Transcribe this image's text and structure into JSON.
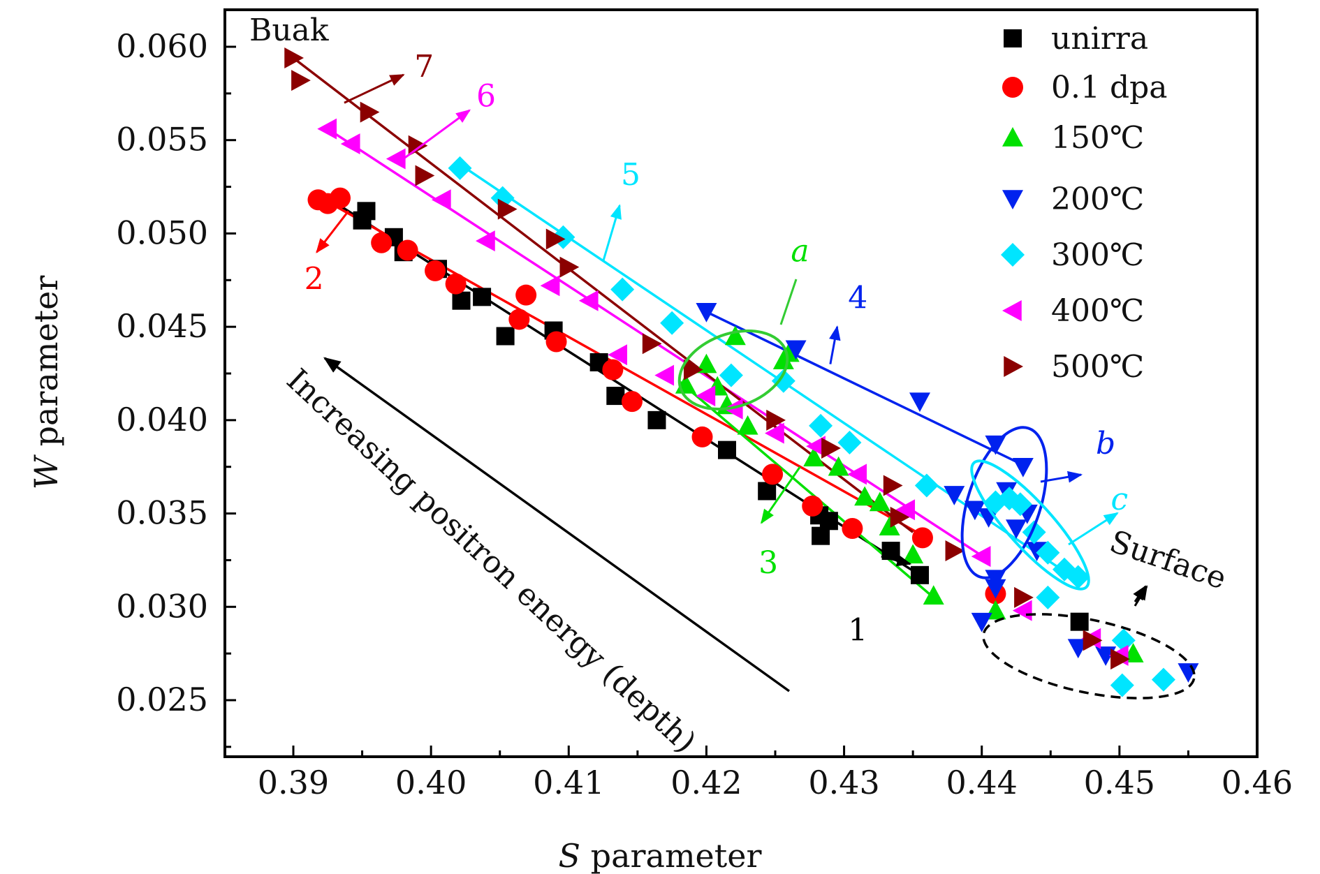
{
  "chart_data": {
    "type": "scatter",
    "title": "",
    "xlabel": {
      "symbol": "S",
      "text": " parameter"
    },
    "ylabel": {
      "symbol": "W",
      "text": " parameter"
    },
    "xlim": [
      0.385,
      0.46
    ],
    "ylim": [
      0.022,
      0.062
    ],
    "xticks": [
      0.39,
      0.4,
      0.41,
      0.42,
      0.43,
      0.44,
      0.45,
      0.46
    ],
    "xtick_labels": [
      "0.39",
      "0.40",
      "0.41",
      "0.42",
      "0.43",
      "0.44",
      "0.45",
      "0.46"
    ],
    "yticks": [
      0.025,
      0.03,
      0.035,
      0.04,
      0.045,
      0.05,
      0.055,
      0.06
    ],
    "ytick_labels": [
      "0.025",
      "0.030",
      "0.035",
      "0.040",
      "0.045",
      "0.050",
      "0.055",
      "0.060"
    ],
    "legend_position": "top-right",
    "series": [
      {
        "name": "unirra",
        "label_key": "unirra",
        "color": "#000000",
        "marker": "square",
        "points": [
          [
            0.3953,
            0.0512
          ],
          [
            0.395,
            0.0507
          ],
          [
            0.3973,
            0.0498
          ],
          [
            0.398,
            0.049
          ],
          [
            0.4005,
            0.0481
          ],
          [
            0.4022,
            0.0464
          ],
          [
            0.4037,
            0.0466
          ],
          [
            0.4054,
            0.0445
          ],
          [
            0.4089,
            0.0448
          ],
          [
            0.4122,
            0.0431
          ],
          [
            0.4134,
            0.0413
          ],
          [
            0.4164,
            0.04
          ],
          [
            0.4215,
            0.0384
          ],
          [
            0.4244,
            0.0362
          ],
          [
            0.4282,
            0.0349
          ],
          [
            0.4283,
            0.0338
          ],
          [
            0.4289,
            0.0346
          ],
          [
            0.4334,
            0.033
          ],
          [
            0.4355,
            0.0317
          ],
          [
            0.4471,
            0.0292
          ]
        ],
        "fit": [
          [
            0.3925,
            0.0519
          ],
          [
            0.4355,
            0.0317
          ]
        ]
      },
      {
        "name": "0.1 dpa",
        "label_key": "dpa01",
        "color": "#ff0000",
        "marker": "circle",
        "points": [
          [
            0.3918,
            0.0518
          ],
          [
            0.3925,
            0.0516
          ],
          [
            0.3934,
            0.0519
          ],
          [
            0.3964,
            0.0495
          ],
          [
            0.3983,
            0.0491
          ],
          [
            0.4003,
            0.048
          ],
          [
            0.4018,
            0.0473
          ],
          [
            0.4069,
            0.0467
          ],
          [
            0.4064,
            0.0454
          ],
          [
            0.4091,
            0.0442
          ],
          [
            0.4132,
            0.0427
          ],
          [
            0.4146,
            0.041
          ],
          [
            0.4197,
            0.0391
          ],
          [
            0.4248,
            0.0371
          ],
          [
            0.4277,
            0.0354
          ],
          [
            0.4306,
            0.0342
          ],
          [
            0.4357,
            0.0337
          ],
          [
            0.441,
            0.0307
          ]
        ],
        "fit": [
          [
            0.392,
            0.0519
          ],
          [
            0.436,
            0.0337
          ]
        ]
      },
      {
        "name": "150℃",
        "label_key": "t150",
        "color": "#00e000",
        "marker": "triangle-up",
        "points": [
          [
            0.42,
            0.043
          ],
          [
            0.4221,
            0.0445
          ],
          [
            0.4208,
            0.0418
          ],
          [
            0.4185,
            0.0419
          ],
          [
            0.4215,
            0.0408
          ],
          [
            0.423,
            0.0397
          ],
          [
            0.4256,
            0.0432
          ],
          [
            0.426,
            0.0436
          ],
          [
            0.4278,
            0.038
          ],
          [
            0.4296,
            0.0375
          ],
          [
            0.4315,
            0.0359
          ],
          [
            0.4326,
            0.0356
          ],
          [
            0.4333,
            0.0343
          ],
          [
            0.435,
            0.0328
          ],
          [
            0.4365,
            0.0306
          ],
          [
            0.441,
            0.0298
          ],
          [
            0.451,
            0.0275
          ]
        ],
        "fit": [
          [
            0.418,
            0.0421
          ],
          [
            0.4365,
            0.0305
          ]
        ]
      },
      {
        "name": "200℃",
        "label_key": "t200",
        "color": "#0022ee",
        "marker": "triangle-down",
        "points": [
          [
            0.42,
            0.0458
          ],
          [
            0.4265,
            0.0438
          ],
          [
            0.4355,
            0.041
          ],
          [
            0.441,
            0.0387
          ],
          [
            0.443,
            0.0375
          ],
          [
            0.438,
            0.036
          ],
          [
            0.4395,
            0.0352
          ],
          [
            0.4405,
            0.0348
          ],
          [
            0.4418,
            0.0362
          ],
          [
            0.4425,
            0.0342
          ],
          [
            0.4433,
            0.035
          ],
          [
            0.444,
            0.033
          ],
          [
            0.441,
            0.0315
          ],
          [
            0.441,
            0.031
          ],
          [
            0.44,
            0.0292
          ],
          [
            0.447,
            0.0278
          ],
          [
            0.449,
            0.0274
          ],
          [
            0.455,
            0.0265
          ]
        ],
        "fit": [
          [
            0.42,
            0.0458
          ],
          [
            0.443,
            0.0376
          ]
        ]
      },
      {
        "name": "300℃",
        "label_key": "t300",
        "color": "#00e5ff",
        "marker": "diamond",
        "points": [
          [
            0.4021,
            0.0535
          ],
          [
            0.4052,
            0.0519
          ],
          [
            0.4096,
            0.0498
          ],
          [
            0.4139,
            0.047
          ],
          [
            0.4175,
            0.0452
          ],
          [
            0.4218,
            0.0424
          ],
          [
            0.4256,
            0.0421
          ],
          [
            0.4283,
            0.0397
          ],
          [
            0.4304,
            0.0388
          ],
          [
            0.436,
            0.0365
          ],
          [
            0.441,
            0.0356
          ],
          [
            0.442,
            0.0358
          ],
          [
            0.4428,
            0.0355
          ],
          [
            0.4438,
            0.034
          ],
          [
            0.4448,
            0.0329
          ],
          [
            0.446,
            0.032
          ],
          [
            0.447,
            0.0316
          ],
          [
            0.4448,
            0.0305
          ],
          [
            0.4503,
            0.0282
          ],
          [
            0.4502,
            0.0258
          ],
          [
            0.4532,
            0.0261
          ]
        ],
        "fit": [
          [
            0.4025,
            0.0535
          ],
          [
            0.447,
            0.0314
          ]
        ]
      },
      {
        "name": "400℃",
        "label_key": "t400",
        "color": "#ff00ff",
        "marker": "triangle-left",
        "points": [
          [
            0.3925,
            0.0556
          ],
          [
            0.3942,
            0.0548
          ],
          [
            0.3975,
            0.054
          ],
          [
            0.4008,
            0.0518
          ],
          [
            0.404,
            0.0496
          ],
          [
            0.4087,
            0.0472
          ],
          [
            0.4115,
            0.0464
          ],
          [
            0.4136,
            0.0435
          ],
          [
            0.417,
            0.0424
          ],
          [
            0.42,
            0.0413
          ],
          [
            0.422,
            0.0406
          ],
          [
            0.425,
            0.0393
          ],
          [
            0.428,
            0.0386
          ],
          [
            0.431,
            0.0371
          ],
          [
            0.4345,
            0.0352
          ],
          [
            0.44,
            0.0327
          ],
          [
            0.443,
            0.0298
          ],
          [
            0.448,
            0.0283
          ],
          [
            0.45,
            0.0274
          ]
        ],
        "fit": [
          [
            0.3925,
            0.0556
          ],
          [
            0.4405,
            0.0325
          ]
        ]
      },
      {
        "name": "500℃",
        "label_key": "t500",
        "color": "#8b0000",
        "marker": "triangle-right",
        "points": [
          [
            0.39,
            0.0594
          ],
          [
            0.3905,
            0.0582
          ],
          [
            0.3955,
            0.0565
          ],
          [
            0.399,
            0.0547
          ],
          [
            0.3995,
            0.0531
          ],
          [
            0.4055,
            0.0513
          ],
          [
            0.409,
            0.0497
          ],
          [
            0.41,
            0.0482
          ],
          [
            0.416,
            0.0441
          ],
          [
            0.419,
            0.0427
          ],
          [
            0.425,
            0.04
          ],
          [
            0.429,
            0.0385
          ],
          [
            0.4335,
            0.0365
          ],
          [
            0.434,
            0.0348
          ],
          [
            0.438,
            0.033
          ],
          [
            0.443,
            0.0305
          ],
          [
            0.448,
            0.0282
          ],
          [
            0.45,
            0.0272
          ]
        ],
        "fit": [
          [
            0.39,
            0.0594
          ],
          [
            0.435,
            0.034
          ]
        ]
      }
    ],
    "annotations": {
      "buak": "Buak",
      "surface": "Surface",
      "depth_text": "Increasing positron energy (depth)",
      "line_labels": [
        {
          "text": "1",
          "color": "#000000",
          "anchor": [
            0.4327,
            0.0327
          ],
          "label_at": [
            0.431,
            0.0282
          ],
          "head_at": [
            0.4348,
            0.0323
          ]
        },
        {
          "text": "2",
          "color": "#ff0000",
          "anchor": [
            0.394,
            0.0512
          ],
          "label_at": [
            0.3915,
            0.047
          ],
          "head_at": [
            0.3917,
            0.049
          ]
        },
        {
          "text": "3",
          "color": "#00e000",
          "anchor": [
            0.4268,
            0.0375
          ],
          "label_at": [
            0.4245,
            0.0318
          ],
          "head_at": [
            0.424,
            0.0345
          ]
        },
        {
          "text": "4",
          "color": "#0022ee",
          "anchor": [
            0.429,
            0.043
          ],
          "label_at": [
            0.431,
            0.046
          ],
          "head_at": [
            0.4295,
            0.045
          ]
        },
        {
          "text": "5",
          "color": "#00e5ff",
          "anchor": [
            0.4125,
            0.0485
          ],
          "label_at": [
            0.4145,
            0.0526
          ],
          "head_at": [
            0.4137,
            0.0515
          ]
        },
        {
          "text": "6",
          "color": "#ff00ff",
          "anchor": [
            0.398,
            0.054
          ],
          "label_at": [
            0.404,
            0.0568
          ],
          "head_at": [
            0.4028,
            0.0566
          ]
        },
        {
          "text": "7",
          "color": "#8b0000",
          "anchor": [
            0.3937,
            0.057
          ],
          "label_at": [
            0.3995,
            0.0584
          ],
          "head_at": [
            0.398,
            0.0585
          ]
        }
      ],
      "region_labels": [
        {
          "text": "a",
          "color": "#00e000",
          "label_at": [
            0.4268,
            0.0485
          ]
        },
        {
          "text": "b",
          "color": "#0022ee",
          "label_at": [
            0.449,
            0.0382
          ]
        },
        {
          "text": "c",
          "color": "#00e5ff",
          "label_at": [
            0.45,
            0.0352
          ]
        }
      ]
    }
  },
  "legend": {
    "unirra": "unirra",
    "dpa01": "0.1 dpa",
    "t150": "150℃",
    "t200": "200℃",
    "t300": "300℃",
    "t400": "400℃",
    "t500": "500℃"
  }
}
